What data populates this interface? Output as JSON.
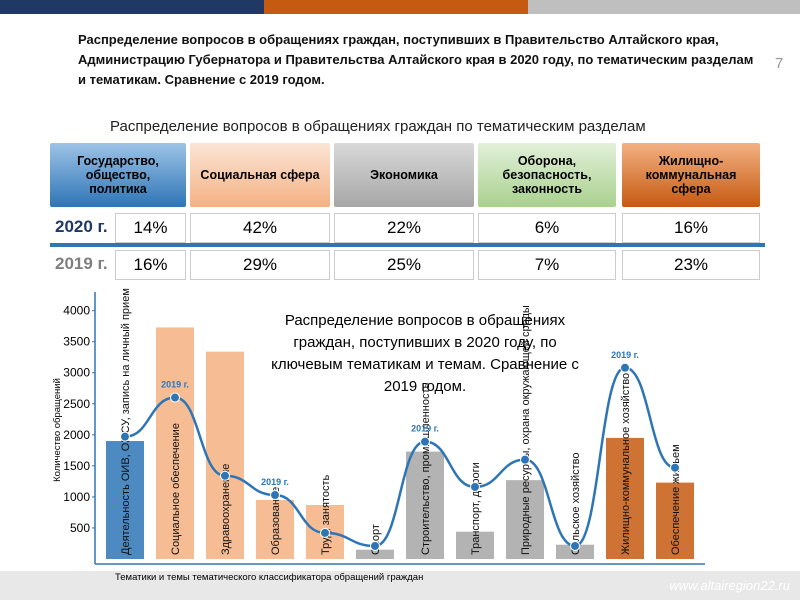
{
  "header": {
    "title": "Распределение вопросов в обращениях граждан, поступивших в Правительство Алтайского края, Администрацию Губернатора и Правительства Алтайского края в 2020 году, по тематическим разделам и тематикам. Сравнение с 2019 годом.",
    "page_number": "7"
  },
  "table": {
    "title": "Распределение вопросов в обращениях граждан по тематическим разделам",
    "columns": [
      "Государство, общество, политика",
      "Социальная сфера",
      "Экономика",
      "Оборона, безопасность, законность",
      "Жилищно-коммунальная сфера"
    ],
    "rows": [
      {
        "label": "2020 г.",
        "cells": [
          "14%",
          "42%",
          "22%",
          "6%",
          "16%"
        ]
      },
      {
        "label": "2019 г.",
        "cells": [
          "16%",
          "29%",
          "25%",
          "7%",
          "23%"
        ]
      }
    ]
  },
  "chart_data": {
    "type": "bar",
    "title": "Распределение вопросов в обращениях граждан, поступивших в 2020 году, по ключевым тематикам и темам. Сравнение с 2019 годом.",
    "y_label": "Количество обращений",
    "x_label": "Тематики и темы тематического классификатора обращений граждан",
    "categories": [
      "Деятельность ОИВ, ОМСУ, запись на личный прием",
      "Социальное обеспечение",
      "Здравоохранение",
      "Образование",
      "Труд, занятость",
      "Спорт",
      "Строительство, промышленность",
      "Транспорт, дороги",
      "Природные ресурсы, охрана окружающей среды",
      "Сельское хозяйство",
      "Жилищно-коммунальное хозяйство",
      "Обеспечение жильем"
    ],
    "series": [
      {
        "values": [
          1900,
          3730,
          3340,
          950,
          870,
          150,
          1730,
          440,
          1270,
          230,
          1950,
          1230
        ],
        "colors": [
          "#2e75b6",
          "#f4b183",
          "#f4b183",
          "#f4b183",
          "#f4b183",
          "#a6a6a6",
          "#a6a6a6",
          "#a6a6a6",
          "#a6a6a6",
          "#a6a6a6",
          "#c55a11",
          "#c55a11"
        ]
      },
      {
        "name": "2019 г.",
        "type": "line",
        "color": "#2e75b6",
        "values": [
          1970,
          2600,
          1340,
          1030,
          420,
          210,
          1890,
          1160,
          1600,
          210,
          3080,
          1470
        ]
      }
    ],
    "annotations": [
      {
        "index": 1,
        "text": "2019 г."
      },
      {
        "index": 3,
        "text": "2019 г."
      },
      {
        "index": 6,
        "text": "2019 г."
      },
      {
        "index": 10,
        "text": "2019 г."
      }
    ],
    "ylim": [
      0,
      4300
    ],
    "yticks": [
      500,
      1000,
      1500,
      2000,
      2500,
      3000,
      3500,
      4000
    ]
  },
  "footer": {
    "watermark": "www.altairegion22.ru"
  }
}
